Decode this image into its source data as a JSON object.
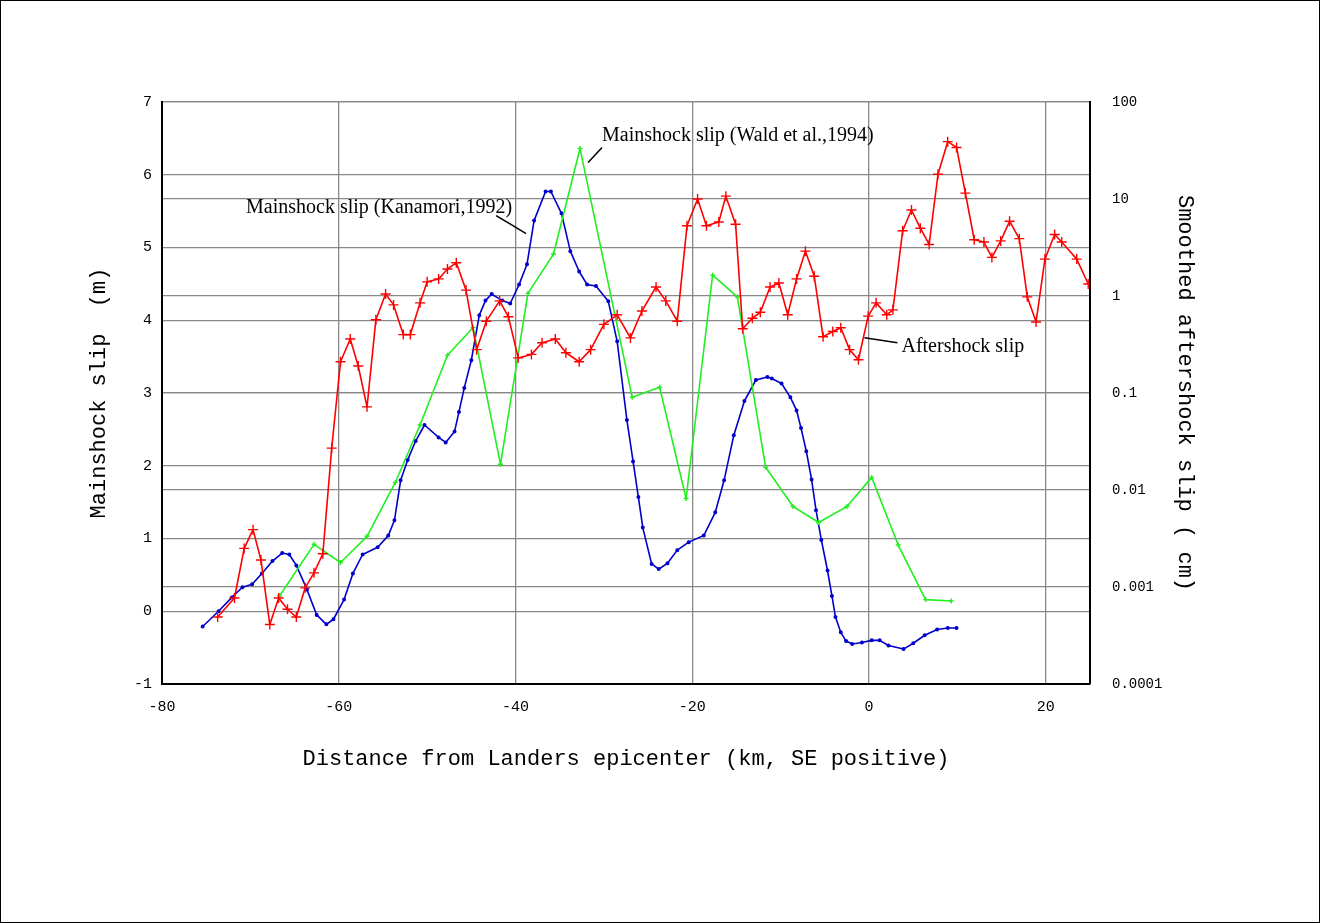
{
  "chart_data": {
    "type": "line",
    "xlabel": "Distance from Landers epicenter (km, SE positive)",
    "ylabel": "Mainshock slip  (m)",
    "y2label": "Smoothed aftershock slip ( cm)",
    "xlim": [
      -80,
      25
    ],
    "xticks": [
      -80,
      -60,
      -40,
      -20,
      0,
      20
    ],
    "ylim": [
      -1,
      7
    ],
    "yticks": [
      -1,
      0,
      1,
      2,
      3,
      4,
      5,
      6,
      7
    ],
    "y2lim": [
      0.0001,
      100
    ],
    "y2ticks": [
      0.0001,
      0.001,
      0.01,
      0.1,
      1,
      10,
      100
    ],
    "log": "y2",
    "grid": true,
    "legend": false,
    "series": [
      {
        "name": "Mainshock slip (Kanamori,1992)",
        "color": "#0000cc",
        "marker": "circle",
        "x": [
          -75.4,
          -73.6,
          -72.1,
          -70.9,
          -69.8,
          -68.7,
          -67.5,
          -66.4,
          -65.6,
          -64.8,
          -63.6,
          -62.5,
          -61.4,
          -60.6,
          -59.4,
          -58.4,
          -57.3,
          -55.6,
          -54.4,
          -53.7,
          -53.0,
          -52.2,
          -51.3,
          -50.3,
          -48.7,
          -47.9,
          -46.9,
          -46.4,
          -45.8,
          -45.0,
          -44.1,
          -43.4,
          -42.7,
          -41.5,
          -40.6,
          -39.6,
          -38.7,
          -37.9,
          -36.6,
          -36.0,
          -34.8,
          -33.8,
          -32.8,
          -31.9,
          -30.9,
          -29.5,
          -28.5,
          -27.4,
          -26.7,
          -26.1,
          -25.6,
          -24.6,
          -23.8,
          -22.8,
          -21.7,
          -20.4,
          -18.7,
          -17.4,
          -16.4,
          -15.3,
          -14.1,
          -12.8,
          -11.5,
          -11.0,
          -9.9,
          -8.9,
          -8.2,
          -7.7,
          -7.1,
          -6.5,
          -6.0,
          -5.4,
          -4.7,
          -4.2,
          -3.8,
          -3.2,
          -2.6,
          -1.9,
          -0.8,
          0.3,
          1.2,
          2.2,
          3.9,
          5.0,
          6.3,
          7.7,
          8.9,
          9.9
        ],
        "values": [
          -0.21,
          0.0,
          0.19,
          0.33,
          0.37,
          0.52,
          0.69,
          0.8,
          0.78,
          0.63,
          0.3,
          -0.05,
          -0.18,
          -0.11,
          0.16,
          0.52,
          0.78,
          0.88,
          1.04,
          1.25,
          1.8,
          2.08,
          2.34,
          2.56,
          2.39,
          2.32,
          2.47,
          2.74,
          3.07,
          3.45,
          4.07,
          4.27,
          4.36,
          4.27,
          4.23,
          4.49,
          4.77,
          5.37,
          5.77,
          5.77,
          5.47,
          4.95,
          4.67,
          4.49,
          4.47,
          4.26,
          3.71,
          2.63,
          2.06,
          1.57,
          1.15,
          0.65,
          0.58,
          0.66,
          0.84,
          0.95,
          1.04,
          1.36,
          1.8,
          2.42,
          2.89,
          3.18,
          3.22,
          3.2,
          3.13,
          2.94,
          2.76,
          2.52,
          2.2,
          1.81,
          1.39,
          0.98,
          0.56,
          0.21,
          -0.08,
          -0.29,
          -0.41,
          -0.45,
          -0.43,
          -0.4,
          -0.4,
          -0.47,
          -0.52,
          -0.44,
          -0.33,
          -0.25,
          -0.23,
          -0.23
        ]
      },
      {
        "name": "Mainshock slip (Wald et al.,1994)",
        "color": "#22ee22",
        "marker": "cross",
        "x": [
          -66.7,
          -62.8,
          -59.8,
          -56.8,
          -53.6,
          -50.8,
          -47.7,
          -44.8,
          -41.7,
          -38.6,
          -35.7,
          -32.7,
          -26.8,
          -23.7,
          -20.7,
          -17.7,
          -14.9,
          -11.7,
          -8.6,
          -5.7,
          -2.5,
          0.3,
          3.3,
          6.4,
          9.3
        ],
        "values": [
          0.21,
          0.92,
          0.67,
          1.03,
          1.77,
          2.56,
          3.52,
          3.9,
          2.02,
          4.37,
          4.91,
          6.36,
          2.94,
          3.08,
          1.55,
          4.62,
          4.32,
          1.98,
          1.44,
          1.22,
          1.44,
          1.84,
          0.91,
          0.16,
          0.14
        ]
      },
      {
        "name": "Aftershock slip",
        "color": "#ff0000",
        "marker": "cross",
        "axis": "y2",
        "x": [
          -73.7,
          -71.8,
          -70.7,
          -69.7,
          -68.8,
          -67.8,
          -66.8,
          -65.8,
          -64.8,
          -63.8,
          -62.8,
          -61.8,
          -60.8,
          -59.8,
          -58.7,
          -57.8,
          -56.8,
          -55.8,
          -54.7,
          -53.8,
          -52.7,
          -51.9,
          -50.8,
          -50.0,
          -48.7,
          -47.7,
          -46.7,
          -45.6,
          -44.4,
          -43.3,
          -41.8,
          -40.8,
          -39.7,
          -38.2,
          -37.0,
          -35.5,
          -34.3,
          -32.8,
          -31.5,
          -30.0,
          -28.5,
          -27.0,
          -25.7,
          -24.1,
          -23.0,
          -21.7,
          -20.6,
          -19.4,
          -18.4,
          -17.0,
          -16.2,
          -15.1,
          -14.3,
          -13.2,
          -12.3,
          -11.2,
          -10.2,
          -9.2,
          -8.2,
          -7.2,
          -6.2,
          -5.2,
          -4.1,
          -3.2,
          -2.2,
          -1.2,
          -0.1,
          0.8,
          2.0,
          2.7,
          3.8,
          4.8,
          5.8,
          6.8,
          7.8,
          8.9,
          9.9,
          10.9,
          11.9,
          13.0,
          13.9,
          14.9,
          15.9,
          17.0,
          17.9,
          18.9,
          19.9,
          21.0,
          21.8,
          23.5,
          24.8
        ],
        "values": [
          0.00049,
          0.00077,
          0.0025,
          0.0039,
          0.0019,
          0.00041,
          0.00077,
          0.00059,
          0.00049,
          0.00098,
          0.0014,
          0.0022,
          0.027,
          0.21,
          0.36,
          0.19,
          0.072,
          0.57,
          1.05,
          0.81,
          0.4,
          0.4,
          0.85,
          1.4,
          1.5,
          1.9,
          2.2,
          1.15,
          0.28,
          0.55,
          0.89,
          0.61,
          0.23,
          0.25,
          0.33,
          0.36,
          0.26,
          0.21,
          0.28,
          0.51,
          0.64,
          0.37,
          0.7,
          1.24,
          0.89,
          0.55,
          5.3,
          10,
          5.3,
          5.8,
          10.7,
          5.5,
          0.46,
          0.59,
          0.68,
          1.24,
          1.36,
          0.64,
          1.5,
          2.9,
          1.6,
          0.38,
          0.43,
          0.47,
          0.28,
          0.22,
          0.62,
          0.85,
          0.64,
          0.72,
          4.7,
          7.7,
          5.0,
          3.4,
          18,
          39,
          34,
          11.5,
          3.8,
          3.6,
          2.5,
          3.7,
          5.9,
          3.9,
          0.98,
          0.54,
          2.4,
          4.3,
          3.6,
          2.4,
          1.33
        ]
      }
    ]
  }
}
